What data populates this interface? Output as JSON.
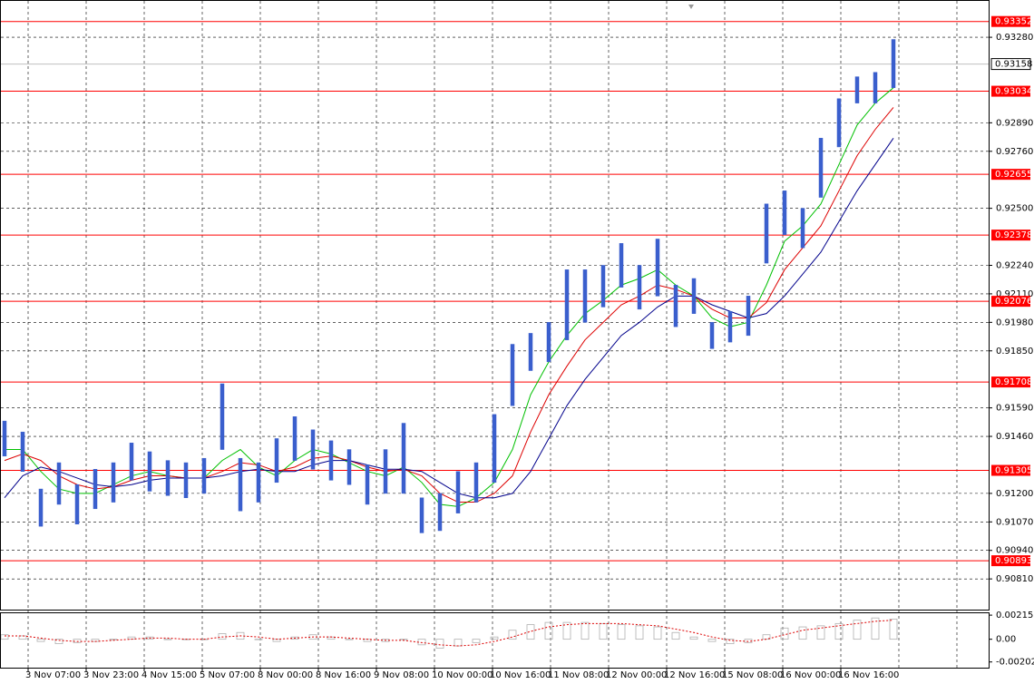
{
  "chart_data": {
    "type": "candlestick",
    "x_labels": [
      "3 Nov 07:00",
      "3 Nov 23:00",
      "4 Nov 15:00",
      "5 Nov 07:00",
      "8 Nov 00:00",
      "8 Nov 16:00",
      "9 Nov 08:00",
      "10 Nov 00:00",
      "10 Nov 16:00",
      "11 Nov 08:00",
      "12 Nov 00:00",
      "12 Nov 16:00",
      "15 Nov 08:00",
      "16 Nov 00:00",
      "16 Nov 16:00"
    ],
    "ylim": [
      0.9067,
      0.9345
    ],
    "yticks": [
      {
        "value": 0.9328,
        "label": "0.93280"
      },
      {
        "value": 0.9289,
        "label": "0.92890"
      },
      {
        "value": 0.9276,
        "label": "0.92760"
      },
      {
        "value": 0.925,
        "label": "0.92500"
      },
      {
        "value": 0.9224,
        "label": "0.92240"
      },
      {
        "value": 0.9211,
        "label": "0.92110"
      },
      {
        "value": 0.9198,
        "label": "0.91980"
      },
      {
        "value": 0.9185,
        "label": "0.91850"
      },
      {
        "value": 0.9159,
        "label": "0.91590"
      },
      {
        "value": 0.9146,
        "label": "0.91460"
      },
      {
        "value": 0.912,
        "label": "0.91200"
      },
      {
        "value": 0.9107,
        "label": "0.91070"
      },
      {
        "value": 0.9094,
        "label": "0.90940"
      },
      {
        "value": 0.9081,
        "label": "0.90810"
      }
    ],
    "grid": true,
    "levels": {
      "color": "#ff0000",
      "values": [
        0.93352,
        0.93034,
        0.92655,
        0.92378,
        0.92076,
        0.91708,
        0.91305,
        0.90893
      ]
    },
    "current_price": 0.93158,
    "bars": {
      "color": "#3a5fcd",
      "high": [
        0.9153,
        0.9148,
        0.9122,
        0.9134,
        0.9124,
        0.9131,
        0.9134,
        0.9143,
        0.9139,
        0.9135,
        0.9134,
        0.9136,
        0.917,
        0.9136,
        0.9134,
        0.9145,
        0.9155,
        0.9149,
        0.9144,
        0.914,
        0.9133,
        0.914,
        0.9152,
        0.9118,
        0.912,
        0.913,
        0.9134,
        0.9156,
        0.9188,
        0.9193,
        0.9198,
        0.9222,
        0.9222,
        0.9224,
        0.9234,
        0.9224,
        0.9236,
        0.9215,
        0.9218,
        0.9198,
        0.9203,
        0.921,
        0.9252,
        0.9258,
        0.925,
        0.9282,
        0.93,
        0.931,
        0.9312,
        0.9327
      ],
      "low": [
        0.9137,
        0.913,
        0.9105,
        0.9115,
        0.9106,
        0.9113,
        0.9116,
        0.9126,
        0.9121,
        0.9119,
        0.9118,
        0.912,
        0.914,
        0.9112,
        0.9116,
        0.9125,
        0.9135,
        0.9131,
        0.9126,
        0.9124,
        0.9115,
        0.912,
        0.912,
        0.9102,
        0.9103,
        0.9111,
        0.9116,
        0.9125,
        0.916,
        0.9176,
        0.918,
        0.919,
        0.9198,
        0.9205,
        0.9214,
        0.9204,
        0.921,
        0.9196,
        0.9202,
        0.9186,
        0.9189,
        0.9192,
        0.9225,
        0.9238,
        0.9232,
        0.9255,
        0.9278,
        0.9298,
        0.9298,
        0.9305
      ]
    },
    "series": [
      {
        "color": "#00c000",
        "values": [
          0.914,
          0.914,
          0.913,
          0.9122,
          0.912,
          0.912,
          0.9124,
          0.9128,
          0.913,
          0.9128,
          0.9127,
          0.9127,
          0.9135,
          0.914,
          0.9132,
          0.9128,
          0.9135,
          0.914,
          0.9138,
          0.9134,
          0.913,
          0.9128,
          0.9132,
          0.9125,
          0.9115,
          0.9114,
          0.9118,
          0.9125,
          0.914,
          0.9165,
          0.918,
          0.9192,
          0.9202,
          0.9208,
          0.9215,
          0.9218,
          0.9222,
          0.9215,
          0.921,
          0.92,
          0.9196,
          0.9198,
          0.9215,
          0.9235,
          0.9242,
          0.9252,
          0.927,
          0.9288,
          0.9298,
          0.9305
        ]
      },
      {
        "color": "#dd0000",
        "values": [
          0.9135,
          0.9138,
          0.9135,
          0.9128,
          0.9124,
          0.9122,
          0.9123,
          0.9126,
          0.9128,
          0.9128,
          0.9127,
          0.9127,
          0.913,
          0.9134,
          0.9133,
          0.913,
          0.9132,
          0.9136,
          0.9137,
          0.9135,
          0.9132,
          0.913,
          0.9131,
          0.9128,
          0.912,
          0.9116,
          0.9116,
          0.912,
          0.9128,
          0.9148,
          0.9165,
          0.9178,
          0.919,
          0.9198,
          0.9206,
          0.921,
          0.9215,
          0.9213,
          0.921,
          0.9204,
          0.92,
          0.92,
          0.9207,
          0.9222,
          0.9232,
          0.9242,
          0.9258,
          0.9274,
          0.9286,
          0.9296
        ]
      },
      {
        "color": "#00008b",
        "values": [
          0.9118,
          0.9128,
          0.9132,
          0.913,
          0.9127,
          0.9124,
          0.9123,
          0.9124,
          0.9126,
          0.9127,
          0.9127,
          0.9127,
          0.9128,
          0.913,
          0.9131,
          0.913,
          0.913,
          0.9133,
          0.9135,
          0.9135,
          0.9133,
          0.9131,
          0.9131,
          0.913,
          0.9125,
          0.912,
          0.9118,
          0.9118,
          0.912,
          0.913,
          0.9145,
          0.916,
          0.9172,
          0.9182,
          0.9192,
          0.9198,
          0.9205,
          0.921,
          0.921,
          0.9206,
          0.9203,
          0.92,
          0.9202,
          0.921,
          0.922,
          0.923,
          0.9244,
          0.9258,
          0.927,
          0.9282
        ]
      }
    ],
    "indicator": {
      "ylim": [
        -0.00254,
        0.00232
      ],
      "yticks": [
        0.00215,
        {
          "value": 0,
          "label": "0.00"
        },
        -0.002029
      ],
      "color": "#b0b0b0",
      "values": [
        0.0004,
        0.0003,
        -0.0002,
        -0.0004,
        -0.0003,
        -0.0002,
        0.0,
        0.0002,
        0.0002,
        0.0,
        0.0,
        0.0,
        0.0005,
        0.0006,
        0.0,
        -0.0002,
        0.0002,
        0.0004,
        0.0002,
        0.0,
        -0.0002,
        -0.0002,
        0.0,
        -0.0005,
        -0.0008,
        -0.0006,
        -0.0003,
        0.0002,
        0.0008,
        0.0013,
        0.0015,
        0.0015,
        0.0015,
        0.0014,
        0.0013,
        0.0012,
        0.0011,
        0.0006,
        0.0002,
        -0.0002,
        -0.0004,
        -0.0003,
        0.0004,
        0.001,
        0.0011,
        0.0012,
        0.0014,
        0.0017,
        0.0019,
        0.0018
      ],
      "signal": {
        "color": "#dd0000",
        "values": [
          0.0003,
          0.0003,
          0.0001,
          -0.0001,
          -0.0002,
          -0.0002,
          -0.0001,
          0.0,
          0.0001,
          0.0001,
          0.0,
          0.0,
          0.0002,
          0.0003,
          0.0002,
          0.0,
          0.0001,
          0.0002,
          0.0002,
          0.0001,
          0.0,
          -0.0001,
          -0.0001,
          -0.0003,
          -0.0005,
          -0.0006,
          -0.0005,
          -0.0002,
          0.0002,
          0.0007,
          0.0011,
          0.0013,
          0.0014,
          0.0014,
          0.0014,
          0.0013,
          0.0012,
          0.0009,
          0.0006,
          0.0002,
          -0.0001,
          -0.0002,
          0.0,
          0.0004,
          0.0008,
          0.001,
          0.0012,
          0.0014,
          0.0016,
          0.0017
        ]
      }
    }
  }
}
